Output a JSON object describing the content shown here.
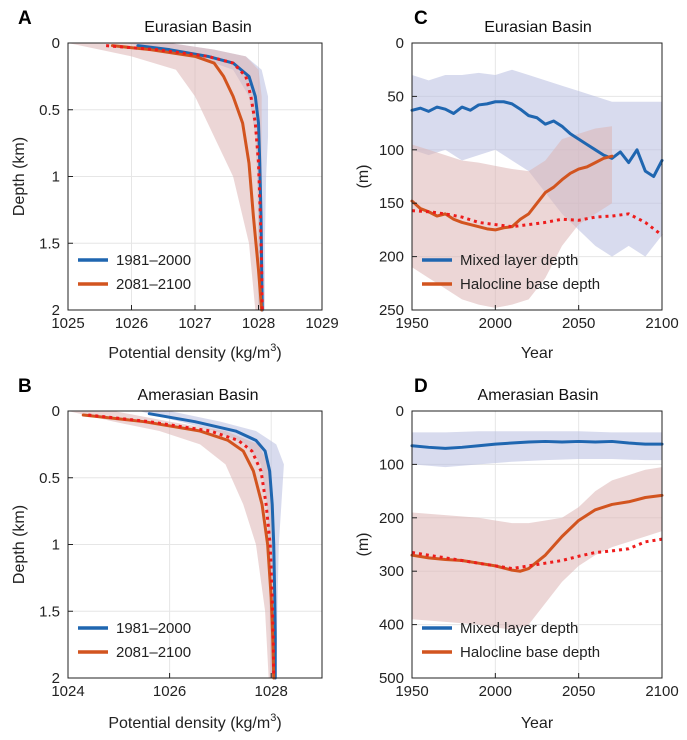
{
  "colors": {
    "blue": "#1f66b0",
    "orange": "#d2541f",
    "red_dotted": "#ee1c1c",
    "blue_band": "#b8bde0",
    "orange_band": "#dcb5b5",
    "grid": "#e6e6e6"
  },
  "chart_data": [
    {
      "id": "A",
      "panel_label": "A",
      "type": "line",
      "title": "Eurasian Basin",
      "xlabel": "Potential density (kg/m",
      "xlabel_sup": "3",
      "xlabel_end": ")",
      "ylabel": "Depth (km)",
      "xlim": [
        1025,
        1029
      ],
      "ylim": [
        0,
        2
      ],
      "y_reversed": true,
      "xticks": [
        "1025",
        "1026",
        "1027",
        "1028",
        "1029"
      ],
      "yticks": [
        "0",
        "0.5",
        "1",
        "1.5",
        "2"
      ],
      "legend": {
        "position": "bottom-left",
        "entries": [
          "1981–2000",
          "2081–2100"
        ]
      },
      "series": [
        {
          "name": "1981–2000",
          "style": "solid",
          "color_key": "blue",
          "x": [
            1026.1,
            1026.6,
            1027.2,
            1027.6,
            1027.85,
            1027.95,
            1028.0,
            1028.02,
            1028.04,
            1028.05,
            1028.06
          ],
          "y": [
            0.02,
            0.05,
            0.1,
            0.15,
            0.25,
            0.4,
            0.6,
            0.9,
            1.3,
            1.7,
            2.0
          ]
        },
        {
          "name": "2081–2100",
          "style": "solid",
          "color_key": "orange",
          "x": [
            1025.7,
            1026.3,
            1027.0,
            1027.3,
            1027.45,
            1027.6,
            1027.75,
            1027.85,
            1027.92,
            1028.0,
            1028.05
          ],
          "y": [
            0.02,
            0.05,
            0.1,
            0.15,
            0.25,
            0.4,
            0.6,
            0.9,
            1.3,
            1.7,
            2.0
          ]
        },
        {
          "name": "",
          "style": "dotted",
          "color_key": "red_dotted",
          "x": [
            1025.6,
            1026.4,
            1027.2,
            1027.6,
            1027.8,
            1027.88,
            1027.95,
            1028.0,
            1028.03,
            1028.05,
            1028.06
          ],
          "y": [
            0.02,
            0.05,
            0.1,
            0.15,
            0.25,
            0.4,
            0.6,
            0.9,
            1.3,
            1.7,
            2.0
          ]
        }
      ],
      "bands": [
        {
          "color_key": "blue_band",
          "y": [
            0.0,
            0.05,
            0.1,
            0.2,
            0.4,
            0.7,
            1.0,
            1.5,
            2.0
          ],
          "lower": [
            1025.9,
            1026.4,
            1027.0,
            1027.6,
            1027.85,
            1027.95,
            1027.98,
            1028.0,
            1028.0
          ],
          "upper": [
            1026.6,
            1027.3,
            1027.8,
            1028.05,
            1028.15,
            1028.15,
            1028.12,
            1028.1,
            1028.1
          ]
        },
        {
          "color_key": "orange_band",
          "y": [
            0.0,
            0.05,
            0.1,
            0.2,
            0.4,
            0.7,
            1.0,
            1.5,
            2.0
          ],
          "lower": [
            1025.0,
            1025.5,
            1026.0,
            1026.7,
            1027.0,
            1027.3,
            1027.6,
            1027.85,
            1027.95
          ],
          "upper": [
            1026.6,
            1027.3,
            1027.8,
            1028.0,
            1028.05,
            1028.05,
            1028.05,
            1028.05,
            1028.08
          ]
        }
      ]
    },
    {
      "id": "B",
      "panel_label": "B",
      "type": "line",
      "title": "Amerasian Basin",
      "xlabel": "Potential density (kg/m",
      "xlabel_sup": "3",
      "xlabel_end": ")",
      "ylabel": "Depth (km)",
      "xlim": [
        1024,
        1029
      ],
      "ylim": [
        0,
        2
      ],
      "y_reversed": true,
      "xticks": [
        "1024",
        "1026",
        "1028"
      ],
      "xtick_values": [
        1024,
        1026,
        1028
      ],
      "yticks": [
        "0",
        "0.5",
        "1",
        "1.5",
        "2"
      ],
      "legend": {
        "position": "bottom-left",
        "entries": [
          "1981–2000",
          "2081–2100"
        ]
      },
      "series": [
        {
          "name": "1981–2000",
          "style": "solid",
          "color_key": "blue",
          "x": [
            1025.6,
            1026.5,
            1027.3,
            1027.7,
            1027.88,
            1027.97,
            1028.02,
            1028.05,
            1028.07,
            1028.08,
            1028.08
          ],
          "y": [
            0.02,
            0.08,
            0.15,
            0.22,
            0.3,
            0.45,
            0.7,
            1.0,
            1.4,
            1.7,
            2.0
          ]
        },
        {
          "name": "2081–2100",
          "style": "solid",
          "color_key": "orange",
          "x": [
            1024.3,
            1025.5,
            1026.6,
            1027.15,
            1027.45,
            1027.65,
            1027.82,
            1027.93,
            1028.0,
            1028.03,
            1028.05
          ],
          "y": [
            0.03,
            0.08,
            0.15,
            0.22,
            0.3,
            0.45,
            0.7,
            1.0,
            1.4,
            1.7,
            2.0
          ]
        },
        {
          "name": "",
          "style": "dotted",
          "color_key": "red_dotted",
          "x": [
            1024.4,
            1025.6,
            1026.8,
            1027.35,
            1027.62,
            1027.8,
            1027.9,
            1027.98,
            1028.02,
            1028.04,
            1028.05
          ],
          "y": [
            0.03,
            0.08,
            0.15,
            0.22,
            0.3,
            0.45,
            0.7,
            1.0,
            1.4,
            1.7,
            2.0
          ]
        }
      ],
      "bands": [
        {
          "color_key": "blue_band",
          "y": [
            0.0,
            0.08,
            0.15,
            0.25,
            0.4,
            0.7,
            1.0,
            1.5,
            2.0
          ],
          "lower": [
            1025.4,
            1026.2,
            1026.9,
            1027.5,
            1027.8,
            1027.92,
            1027.95,
            1027.97,
            1027.98
          ],
          "upper": [
            1026.0,
            1027.0,
            1027.7,
            1028.1,
            1028.25,
            1028.2,
            1028.15,
            1028.12,
            1028.1
          ]
        },
        {
          "color_key": "orange_band",
          "y": [
            0.0,
            0.08,
            0.15,
            0.25,
            0.4,
            0.7,
            1.0,
            1.5,
            2.0
          ],
          "lower": [
            1024.0,
            1024.9,
            1025.8,
            1026.6,
            1027.1,
            1027.45,
            1027.7,
            1027.88,
            1027.95
          ],
          "upper": [
            1024.9,
            1026.0,
            1027.1,
            1027.75,
            1027.95,
            1028.0,
            1028.05,
            1028.08,
            1028.08
          ]
        }
      ]
    },
    {
      "id": "C",
      "panel_label": "C",
      "type": "line",
      "title": "Eurasian Basin",
      "xlabel": "Year",
      "ylabel": "(m)",
      "xlim": [
        1950,
        2100
      ],
      "ylim": [
        0,
        250
      ],
      "y_reversed": true,
      "xticks": [
        "1950",
        "2000",
        "2050",
        "2100"
      ],
      "yticks": [
        "0",
        "50",
        "100",
        "150",
        "200",
        "250"
      ],
      "legend": {
        "position": "bottom-left",
        "entries": [
          "Mixed layer depth",
          "Halocline base depth"
        ]
      },
      "series": [
        {
          "name": "Mixed layer depth",
          "style": "solid",
          "color_key": "blue",
          "x": [
            1950,
            1955,
            1960,
            1965,
            1970,
            1975,
            1980,
            1985,
            1990,
            1995,
            2000,
            2005,
            2010,
            2015,
            2020,
            2025,
            2030,
            2035,
            2040,
            2045,
            2050,
            2055,
            2060,
            2065,
            2070,
            2075,
            2080,
            2085,
            2090,
            2095,
            2100
          ],
          "y": [
            63,
            61,
            64,
            60,
            62,
            66,
            60,
            63,
            58,
            57,
            55,
            55,
            57,
            62,
            68,
            70,
            76,
            73,
            78,
            85,
            90,
            95,
            100,
            105,
            108,
            102,
            112,
            100,
            120,
            125,
            110
          ]
        },
        {
          "name": "Halocline base depth",
          "style": "solid",
          "color_key": "orange",
          "x": [
            1950,
            1955,
            1960,
            1965,
            1970,
            1975,
            1980,
            1985,
            1990,
            1995,
            2000,
            2005,
            2010,
            2015,
            2020,
            2025,
            2030,
            2035,
            2040,
            2045,
            2050,
            2055,
            2060,
            2065,
            2070
          ],
          "y": [
            148,
            155,
            158,
            162,
            160,
            165,
            168,
            170,
            172,
            174,
            175,
            173,
            172,
            165,
            160,
            150,
            140,
            135,
            128,
            122,
            118,
            116,
            112,
            108,
            106
          ]
        },
        {
          "name": "",
          "style": "dotted",
          "color_key": "red_dotted",
          "x": [
            1950,
            1960,
            1970,
            1980,
            1990,
            2000,
            2010,
            2020,
            2030,
            2040,
            2050,
            2060,
            2070,
            2080,
            2090,
            2100
          ],
          "y": [
            157,
            158,
            160,
            163,
            168,
            170,
            172,
            170,
            168,
            165,
            166,
            163,
            162,
            160,
            168,
            180
          ]
        }
      ],
      "bands": [
        {
          "color_key": "blue_band",
          "x": [
            1950,
            1960,
            1970,
            1980,
            1990,
            2000,
            2010,
            2020,
            2030,
            2040,
            2050,
            2060,
            2070,
            2080,
            2090,
            2100
          ],
          "lower": [
            30,
            35,
            30,
            30,
            28,
            30,
            25,
            30,
            35,
            40,
            45,
            50,
            55,
            55,
            55,
            55
          ],
          "upper": [
            100,
            105,
            100,
            110,
            105,
            100,
            110,
            120,
            140,
            160,
            175,
            190,
            200,
            190,
            200,
            180
          ]
        },
        {
          "color_key": "orange_band",
          "x": [
            1950,
            1960,
            1970,
            1980,
            1990,
            2000,
            2010,
            2020,
            2030,
            2040,
            2050,
            2060,
            2070
          ],
          "lower": [
            95,
            100,
            105,
            110,
            112,
            115,
            118,
            120,
            110,
            90,
            85,
            80,
            78
          ],
          "upper": [
            210,
            220,
            230,
            240,
            245,
            248,
            245,
            240,
            220,
            190,
            170,
            160,
            150
          ]
        }
      ]
    },
    {
      "id": "D",
      "panel_label": "D",
      "type": "line",
      "title": "Amerasian Basin",
      "xlabel": "Year",
      "ylabel": "(m)",
      "xlim": [
        1950,
        2100
      ],
      "ylim": [
        0,
        500
      ],
      "y_reversed": true,
      "xticks": [
        "1950",
        "2000",
        "2050",
        "2100"
      ],
      "yticks": [
        "0",
        "100",
        "200",
        "300",
        "400",
        "500"
      ],
      "legend": {
        "position": "bottom-left",
        "entries": [
          "Mixed layer depth",
          "Halocline base depth"
        ]
      },
      "series": [
        {
          "name": "Mixed layer depth",
          "style": "solid",
          "color_key": "blue",
          "x": [
            1950,
            1960,
            1970,
            1980,
            1990,
            2000,
            2010,
            2020,
            2030,
            2040,
            2050,
            2060,
            2070,
            2080,
            2090,
            2100
          ],
          "y": [
            65,
            68,
            70,
            68,
            65,
            62,
            60,
            58,
            57,
            58,
            57,
            58,
            57,
            60,
            62,
            62
          ]
        },
        {
          "name": "Halocline base depth",
          "style": "solid",
          "color_key": "orange",
          "x": [
            1950,
            1960,
            1970,
            1980,
            1990,
            2000,
            2010,
            2015,
            2020,
            2030,
            2040,
            2050,
            2060,
            2070,
            2080,
            2090,
            2100
          ],
          "y": [
            270,
            275,
            278,
            280,
            285,
            290,
            298,
            300,
            295,
            270,
            235,
            205,
            185,
            175,
            170,
            162,
            158
          ]
        },
        {
          "name": "",
          "style": "dotted",
          "color_key": "red_dotted",
          "x": [
            1950,
            1960,
            1970,
            1980,
            1990,
            2000,
            2010,
            2020,
            2030,
            2040,
            2050,
            2060,
            2070,
            2080,
            2090,
            2100
          ],
          "y": [
            265,
            270,
            275,
            280,
            285,
            290,
            295,
            290,
            285,
            280,
            272,
            265,
            262,
            258,
            245,
            240
          ]
        }
      ],
      "bands": [
        {
          "color_key": "blue_band",
          "x": [
            1950,
            1970,
            1990,
            2010,
            2030,
            2050,
            2070,
            2090,
            2100
          ],
          "lower": [
            40,
            40,
            38,
            38,
            38,
            38,
            40,
            40,
            40
          ],
          "upper": [
            100,
            105,
            100,
            95,
            92,
            90,
            90,
            92,
            92
          ]
        },
        {
          "color_key": "orange_band",
          "x": [
            1950,
            1970,
            1990,
            2000,
            2010,
            2020,
            2030,
            2040,
            2050,
            2060,
            2070,
            2080,
            2090,
            2100
          ],
          "lower": [
            190,
            195,
            200,
            205,
            210,
            210,
            205,
            200,
            180,
            150,
            130,
            120,
            110,
            105
          ],
          "upper": [
            390,
            395,
            400,
            405,
            410,
            400,
            360,
            320,
            290,
            270,
            255,
            245,
            235,
            225
          ]
        }
      ]
    }
  ]
}
